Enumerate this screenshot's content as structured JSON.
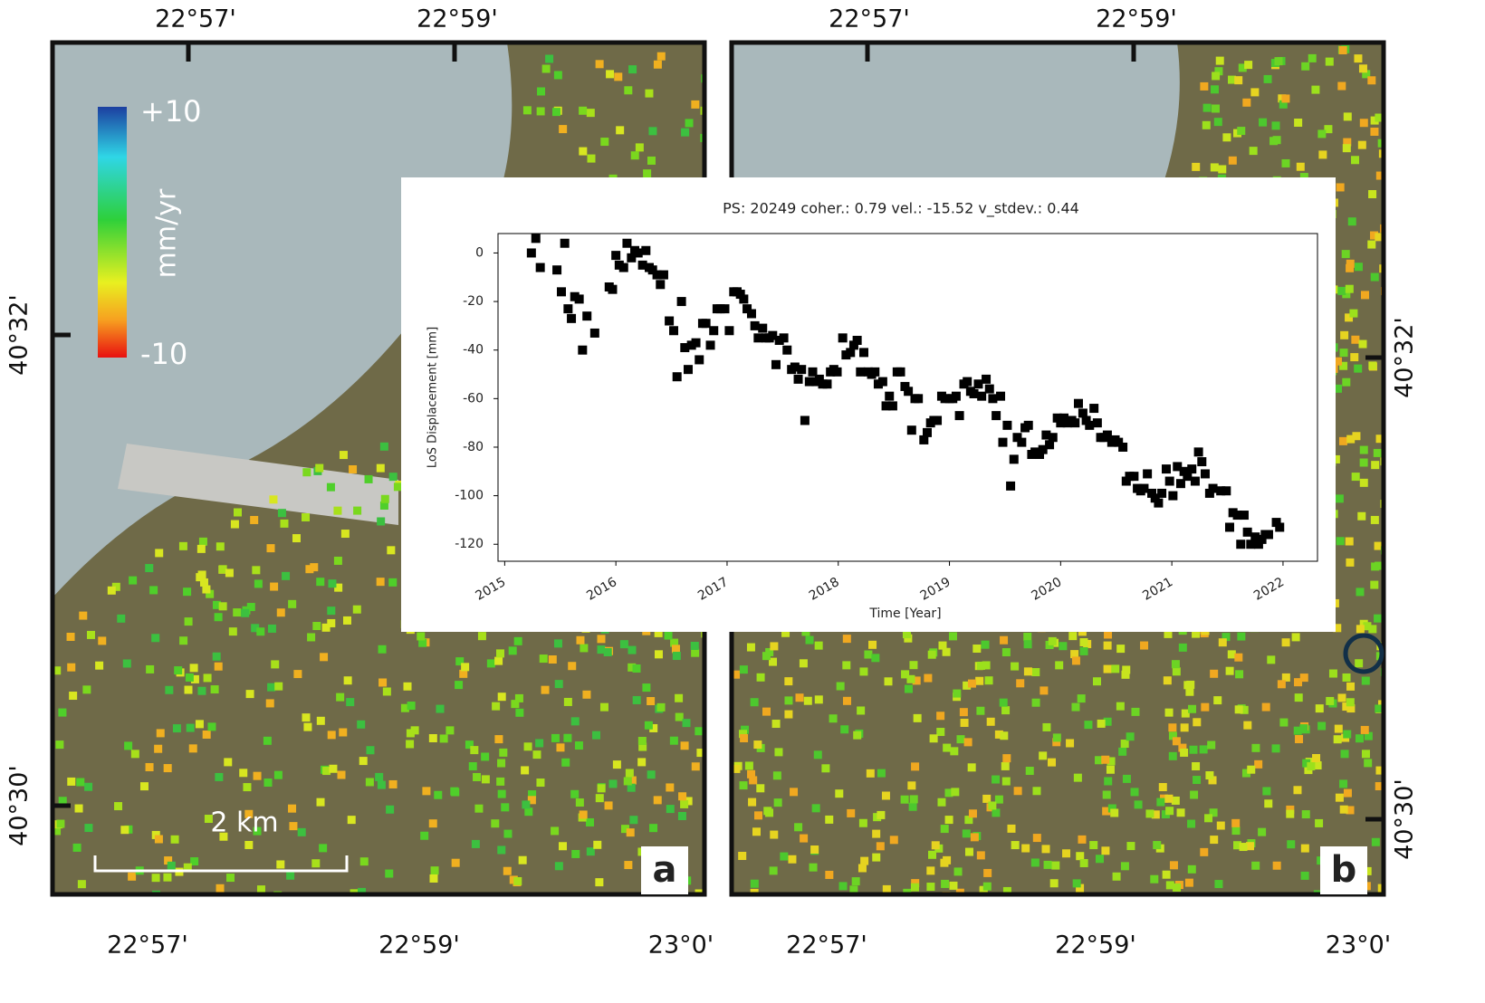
{
  "chart_data": {
    "type": "scatter",
    "title": "PS: 20249 coher.: 0.79 vel.: -15.52 v_stdev.: 0.44",
    "xlabel": "Time [Year]",
    "ylabel": "LoS Displacement [mm]",
    "color": "#000000",
    "x": [
      2015.24,
      2015.28,
      2015.32,
      2015.47,
      2015.51,
      2015.54,
      2015.57,
      2015.6,
      2015.63,
      2015.67,
      2015.7,
      2015.74,
      2015.81,
      2015.94,
      2015.97,
      2016.0,
      2016.03,
      2016.07,
      2016.1,
      2016.14,
      2016.17,
      2016.2,
      2016.24,
      2016.27,
      2016.3,
      2016.33,
      2016.37,
      2016.4,
      2016.43,
      2016.48,
      2016.52,
      2016.55,
      2016.59,
      2016.62,
      2016.65,
      2016.68,
      2016.72,
      2016.75,
      2016.78,
      2016.81,
      2016.85,
      2016.88,
      2016.91,
      2016.94,
      2016.98,
      2017.02,
      2017.06,
      2017.09,
      2017.12,
      2017.15,
      2017.18,
      2017.22,
      2017.25,
      2017.28,
      2017.32,
      2017.35,
      2017.38,
      2017.41,
      2017.44,
      2017.47,
      2017.51,
      2017.54,
      2017.58,
      2017.61,
      2017.64,
      2017.67,
      2017.7,
      2017.74,
      2017.77,
      2017.8,
      2017.83,
      2017.86,
      2017.9,
      2017.93,
      2017.96,
      2017.99,
      2018.04,
      2018.07,
      2018.11,
      2018.14,
      2018.17,
      2018.2,
      2018.23,
      2018.27,
      2018.3,
      2018.33,
      2018.36,
      2018.4,
      2018.43,
      2018.46,
      2018.49,
      2018.53,
      2018.56,
      2018.6,
      2018.63,
      2018.66,
      2018.69,
      2018.72,
      2018.77,
      2018.8,
      2018.83,
      2018.86,
      2018.89,
      2018.93,
      2018.96,
      2019.0,
      2019.03,
      2019.06,
      2019.09,
      2019.13,
      2019.16,
      2019.19,
      2019.22,
      2019.26,
      2019.29,
      2019.33,
      2019.36,
      2019.39,
      2019.42,
      2019.46,
      2019.48,
      2019.52,
      2019.55,
      2019.58,
      2019.61,
      2019.65,
      2019.68,
      2019.71,
      2019.74,
      2019.77,
      2019.81,
      2019.84,
      2019.87,
      2019.9,
      2019.93,
      2019.97,
      2020.0,
      2020.03,
      2020.06,
      2020.1,
      2020.13,
      2020.16,
      2020.2,
      2020.23,
      2020.26,
      2020.3,
      2020.33,
      2020.36,
      2020.39,
      2020.42,
      2020.46,
      2020.49,
      2020.52,
      2020.56,
      2020.59,
      2020.62,
      2020.66,
      2020.69,
      2020.72,
      2020.75,
      2020.78,
      2020.82,
      2020.85,
      2020.88,
      2020.91,
      2020.95,
      2020.98,
      2021.01,
      2021.05,
      2021.08,
      2021.11,
      2021.14,
      2021.18,
      2021.21,
      2021.24,
      2021.27,
      2021.3,
      2021.34,
      2021.37,
      2021.44,
      2021.49,
      2021.52,
      2021.55,
      2021.59,
      2021.62,
      2021.65,
      2021.68,
      2021.71,
      2021.75,
      2021.78,
      2021.81,
      2021.84,
      2021.87,
      2021.94,
      2021.97
    ],
    "values": [
      0,
      6,
      -6,
      -7,
      -16,
      4,
      -23,
      -27,
      -18,
      -19,
      -40,
      -26,
      -33,
      -14,
      -15,
      -1,
      -5,
      -6,
      4,
      -2,
      1,
      0,
      -5,
      1,
      -6,
      -7,
      -9,
      -13,
      -9,
      -28,
      -32,
      -51,
      -20,
      -39,
      -48,
      -38,
      -37,
      -44,
      -29,
      -29,
      -38,
      -32,
      -23,
      -23,
      -23,
      -32,
      -16,
      -16,
      -17,
      -19,
      -23,
      -25,
      -30,
      -35,
      -31,
      -35,
      -35,
      -34,
      -46,
      -36,
      -35,
      -40,
      -48,
      -47,
      -52,
      -48,
      -69,
      -53,
      -49,
      -53,
      -52,
      -54,
      -54,
      -49,
      -48,
      -49,
      -35,
      -42,
      -41,
      -38,
      -36,
      -49,
      -41,
      -49,
      -50,
      -49,
      -54,
      -53,
      -63,
      -59,
      -63,
      -49,
      -49,
      -55,
      -57,
      -73,
      -60,
      -60,
      -77,
      -74,
      -70,
      -69,
      -69,
      -59,
      -60,
      -60,
      -60,
      -59,
      -67,
      -54,
      -53,
      -57,
      -58,
      -54,
      -59,
      -52,
      -56,
      -60,
      -67,
      -59,
      -78,
      -71,
      -96,
      -85,
      -76,
      -78,
      -72,
      -71,
      -83,
      -82,
      -83,
      -81,
      -75,
      -79,
      -76,
      -68,
      -70,
      -68,
      -70,
      -69,
      -70,
      -62,
      -66,
      -69,
      -71,
      -64,
      -70,
      -76,
      -76,
      -75,
      -78,
      -77,
      -78,
      -80,
      -94,
      -92,
      -92,
      -97,
      -98,
      -97,
      -91,
      -99,
      -101,
      -103,
      -99,
      -89,
      -94,
      -100,
      -88,
      -95,
      -90,
      -92,
      -89,
      -94,
      -82,
      -86,
      -91,
      -99,
      -97,
      -98,
      -98,
      -113,
      -107,
      -108,
      -120,
      -108,
      -115,
      -120,
      -117,
      -120,
      -118,
      -116,
      -116,
      -111,
      -113
    ],
    "xlim": [
      2014.94,
      2022.31
    ],
    "xticks": [
      2015,
      2016,
      2017,
      2018,
      2019,
      2020,
      2021,
      2022
    ],
    "ylim": [
      -127,
      8
    ],
    "yticks": [
      0,
      -20,
      -40,
      -60,
      -80,
      -100,
      -120
    ]
  },
  "panels": [
    {
      "letter": "a",
      "top_labels": [
        "22°57'",
        "22°59'"
      ],
      "bottom_labels": [
        "22°57'",
        "22°59'",
        "23°0'"
      ],
      "side_labels": [
        "40°32'",
        "40°30'"
      ]
    },
    {
      "letter": "b",
      "top_labels": [
        "22°57'",
        "22°59'"
      ],
      "bottom_labels": [
        "22°57'",
        "22°59'",
        "23°0'"
      ],
      "side_labels": [
        "40°32'",
        "40°30'"
      ]
    }
  ],
  "colorbar": {
    "max": "+10",
    "unit": "mm/yr",
    "min": "-10"
  },
  "scale_bar": "2 km"
}
